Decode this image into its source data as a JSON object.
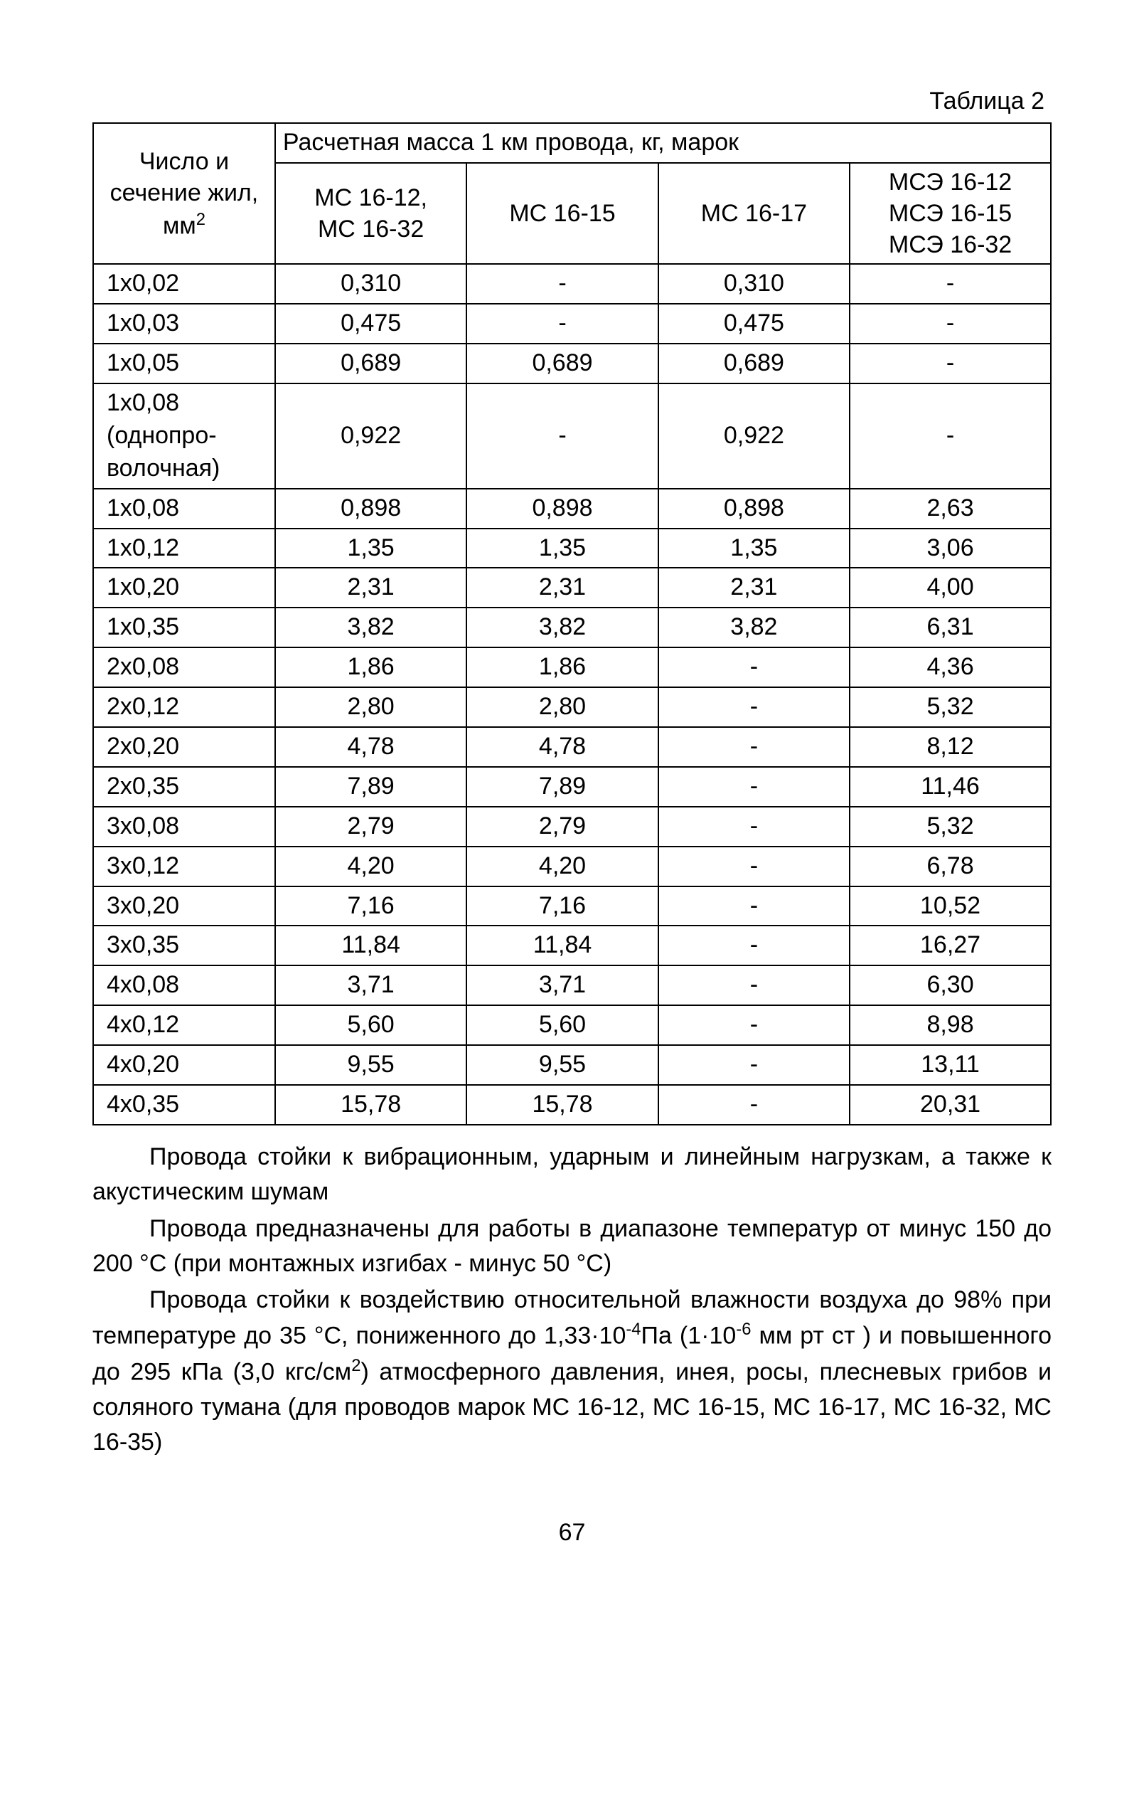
{
  "table_label": "Таблица 2",
  "headers": {
    "row_col": "Число и сечение жил, мм",
    "row_col_sup": "2",
    "mass_header": "Расчетная масса 1 км провода, кг, марок",
    "col1_line1": "МС 16-12,",
    "col1_line2": "МС 16-32",
    "col2": "МС 16-15",
    "col3": "МС 16-17",
    "col4_line1": "МСЭ 16-12",
    "col4_line2": "МСЭ 16-15",
    "col4_line3": "МСЭ 16-32"
  },
  "rows": [
    {
      "label": "1х0,02",
      "c1": "0,310",
      "c2": "-",
      "c3": "0,310",
      "c4": "-"
    },
    {
      "label": "1х0,03",
      "c1": "0,475",
      "c2": "-",
      "c3": "0,475",
      "c4": "-"
    },
    {
      "label": "1х0,05",
      "c1": "0,689",
      "c2": "0,689",
      "c3": "0,689",
      "c4": "-"
    },
    {
      "label": "1х0,08\n(однопро-\nволочная)",
      "c1": "0,922",
      "c2": "-",
      "c3": "0,922",
      "c4": "-"
    },
    {
      "label": "1х0,08",
      "c1": "0,898",
      "c2": "0,898",
      "c3": "0,898",
      "c4": "2,63"
    },
    {
      "label": "1х0,12",
      "c1": "1,35",
      "c2": "1,35",
      "c3": "1,35",
      "c4": "3,06"
    },
    {
      "label": "1х0,20",
      "c1": "2,31",
      "c2": "2,31",
      "c3": "2,31",
      "c4": "4,00"
    },
    {
      "label": "1х0,35",
      "c1": "3,82",
      "c2": "3,82",
      "c3": "3,82",
      "c4": "6,31"
    },
    {
      "label": "2х0,08",
      "c1": "1,86",
      "c2": "1,86",
      "c3": "-",
      "c4": "4,36"
    },
    {
      "label": "2х0,12",
      "c1": "2,80",
      "c2": "2,80",
      "c3": "-",
      "c4": "5,32"
    },
    {
      "label": "2х0,20",
      "c1": "4,78",
      "c2": "4,78",
      "c3": "-",
      "c4": "8,12"
    },
    {
      "label": "2х0,35",
      "c1": "7,89",
      "c2": "7,89",
      "c3": "-",
      "c4": "11,46"
    },
    {
      "label": "3х0,08",
      "c1": "2,79",
      "c2": "2,79",
      "c3": "-",
      "c4": "5,32"
    },
    {
      "label": "3х0,12",
      "c1": "4,20",
      "c2": "4,20",
      "c3": "-",
      "c4": "6,78"
    },
    {
      "label": "3х0,20",
      "c1": "7,16",
      "c2": "7,16",
      "c3": "-",
      "c4": "10,52"
    },
    {
      "label": "3х0,35",
      "c1": "11,84",
      "c2": "11,84",
      "c3": "-",
      "c4": "16,27"
    },
    {
      "label": "4х0,08",
      "c1": "3,71",
      "c2": "3,71",
      "c3": "-",
      "c4": "6,30"
    },
    {
      "label": "4х0,12",
      "c1": "5,60",
      "c2": "5,60",
      "c3": "-",
      "c4": "8,98"
    },
    {
      "label": "4х0,20",
      "c1": "9,55",
      "c2": "9,55",
      "c3": "-",
      "c4": "13,11"
    },
    {
      "label": "4х0,35",
      "c1": "15,78",
      "c2": "15,78",
      "c3": "-",
      "c4": "20,31"
    }
  ],
  "paragraphs": {
    "p1": "Провода стойки к вибрационным, ударным и линейным нагрузкам, а также к акустическим шумам",
    "p2_pre": "Провода предназначены для работы в диапазоне температур от минус 150 до 200 °C (при монтажных изгибах - минус 50 °C)",
    "p3_pre": "Провода стойки к воздействию относительной влажности воздуха до 98% при температуре до 35 °C, пониженного до 1,33·10",
    "p3_sup1": "-4",
    "p3_mid1": "Па (1·10",
    "p3_sup2": "-6",
    "p3_mid2": " мм рт ст ) и повышенного до 295 кПа (3,0 кгс/см",
    "p3_sup3": "2",
    "p3_post": ") атмосферного давления, инея, росы, плесневых грибов и соляного тумана (для проводов марок МС 16-12, МС 16-15, МС 16-17, МС 16-32, МС 16-35)"
  },
  "page_number": "67",
  "table_style": {
    "border_color": "#000000",
    "background_color": "#ffffff",
    "text_color": "#000000",
    "font_size_pt": 34,
    "col_widths_pct": [
      19,
      20,
      20,
      20,
      21
    ]
  }
}
